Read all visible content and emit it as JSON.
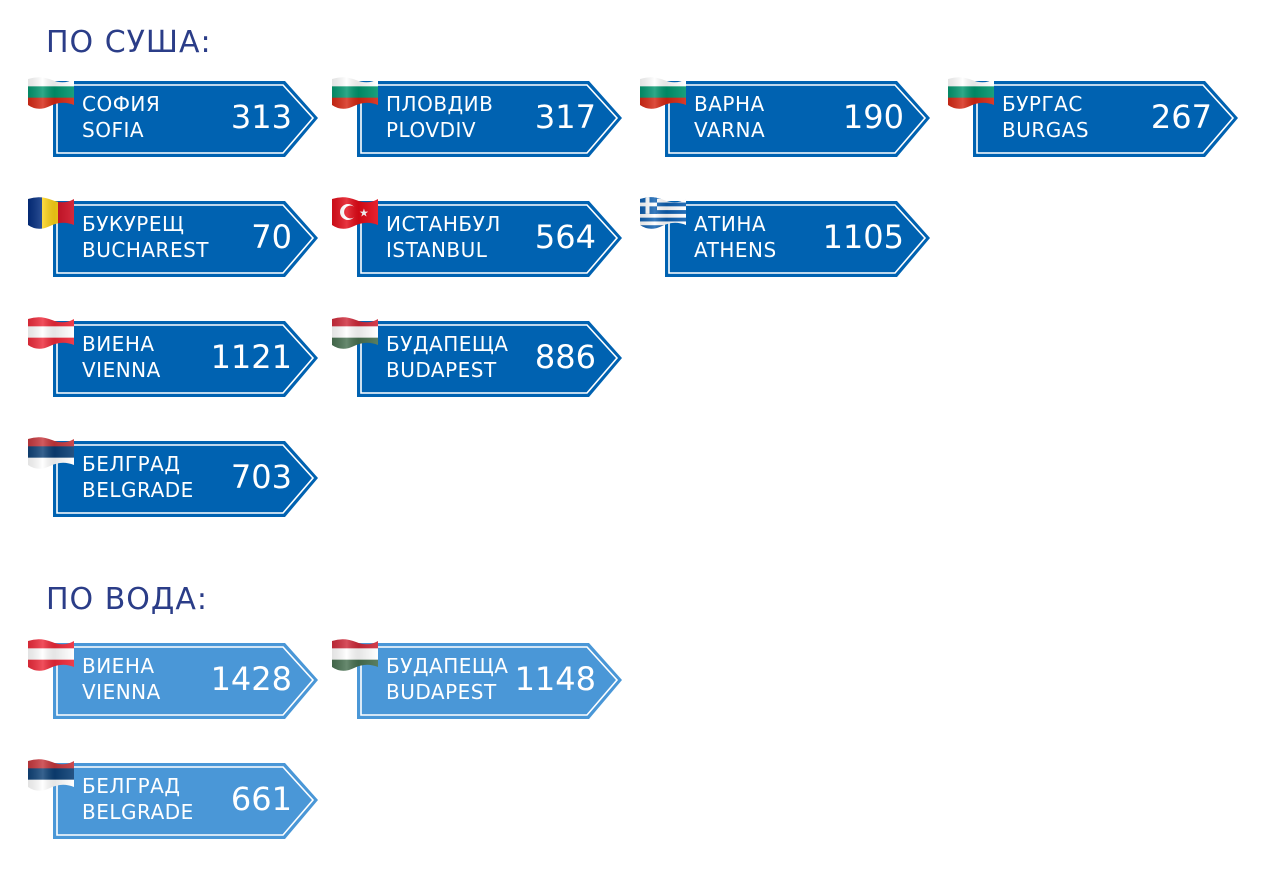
{
  "land": {
    "title": "ПО СУША:",
    "signs": [
      {
        "bg": "СОФИЯ",
        "en": "SOFIA",
        "km": "313",
        "flag": "bulgaria"
      },
      {
        "bg": "ПЛОВДИВ",
        "en": "PLOVDIV",
        "km": "317",
        "flag": "bulgaria"
      },
      {
        "bg": "ВАРНА",
        "en": "VARNA",
        "km": "190",
        "flag": "bulgaria"
      },
      {
        "bg": "БУРГАС",
        "en": "BURGAS",
        "km": "267",
        "flag": "bulgaria"
      },
      {
        "bg": "БУКУРЕЩ",
        "en": "BUCHAREST",
        "km": "70",
        "flag": "romania"
      },
      {
        "bg": "ИСТАНБУЛ",
        "en": "ISTANBUL",
        "km": "564",
        "flag": "turkey"
      },
      {
        "bg": "АТИНА",
        "en": "ATHENS",
        "km": "1105",
        "flag": "greece"
      },
      {
        "bg": "ВИЕНА",
        "en": "VIENNA",
        "km": "1121",
        "flag": "austria"
      },
      {
        "bg": "БУДАПЕЩА",
        "en": "BUDAPEST",
        "km": "886",
        "flag": "hungary"
      },
      {
        "bg": "БЕЛГРАД",
        "en": "BELGRADE",
        "km": "703",
        "flag": "serbia"
      }
    ]
  },
  "water": {
    "title": "ПО ВОДА:",
    "signs": [
      {
        "bg": "ВИЕНА",
        "en": "VIENNA",
        "km": "1428",
        "flag": "austria"
      },
      {
        "bg": "БУДАПЕЩА",
        "en": "BUDAPEST",
        "km": "1148",
        "flag": "hungary"
      },
      {
        "bg": "БЕЛГРАД",
        "en": "BELGRADE",
        "km": "661",
        "flag": "serbia"
      }
    ]
  },
  "colors": {
    "land_sign": "#0062b1",
    "water_sign": "#4a97d7",
    "title": "#2b3d88"
  }
}
